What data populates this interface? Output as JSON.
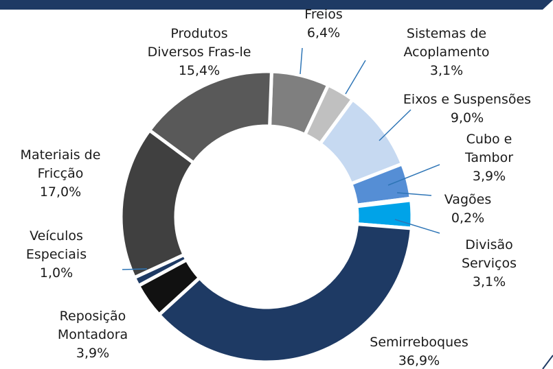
{
  "chart_data": {
    "type": "donut",
    "categories": [
      "Freios",
      "Sistemas de\nAcoplamento",
      "Eixos e Suspensões",
      "Cubo e\nTambor",
      "Vagões",
      "Divisão\nServiços",
      "Semirreboques",
      "Reposição\nMontadora",
      "Veículos\nEspeciais",
      "Materiais de\nFricção",
      "Produtos\nDiversos Fras-le"
    ],
    "values": [
      6.4,
      3.1,
      9.0,
      3.9,
      0.2,
      3.1,
      36.9,
      3.9,
      1.0,
      17.0,
      15.4
    ],
    "value_labels": [
      "6,4%",
      "3,1%",
      "9,0%",
      "3,9%",
      "0,2%",
      "3,1%",
      "36,9%",
      "3,9%",
      "1,0%",
      "17,0%",
      "15,4%"
    ],
    "colors": [
      "#7f7f7f",
      "#c0c0c0",
      "#c6d9f1",
      "#558ed5",
      "#1f4e79",
      "#00a3e8",
      "#1e3a64",
      "#111111",
      "#1e3a64",
      "#404040",
      "#595959"
    ]
  }
}
